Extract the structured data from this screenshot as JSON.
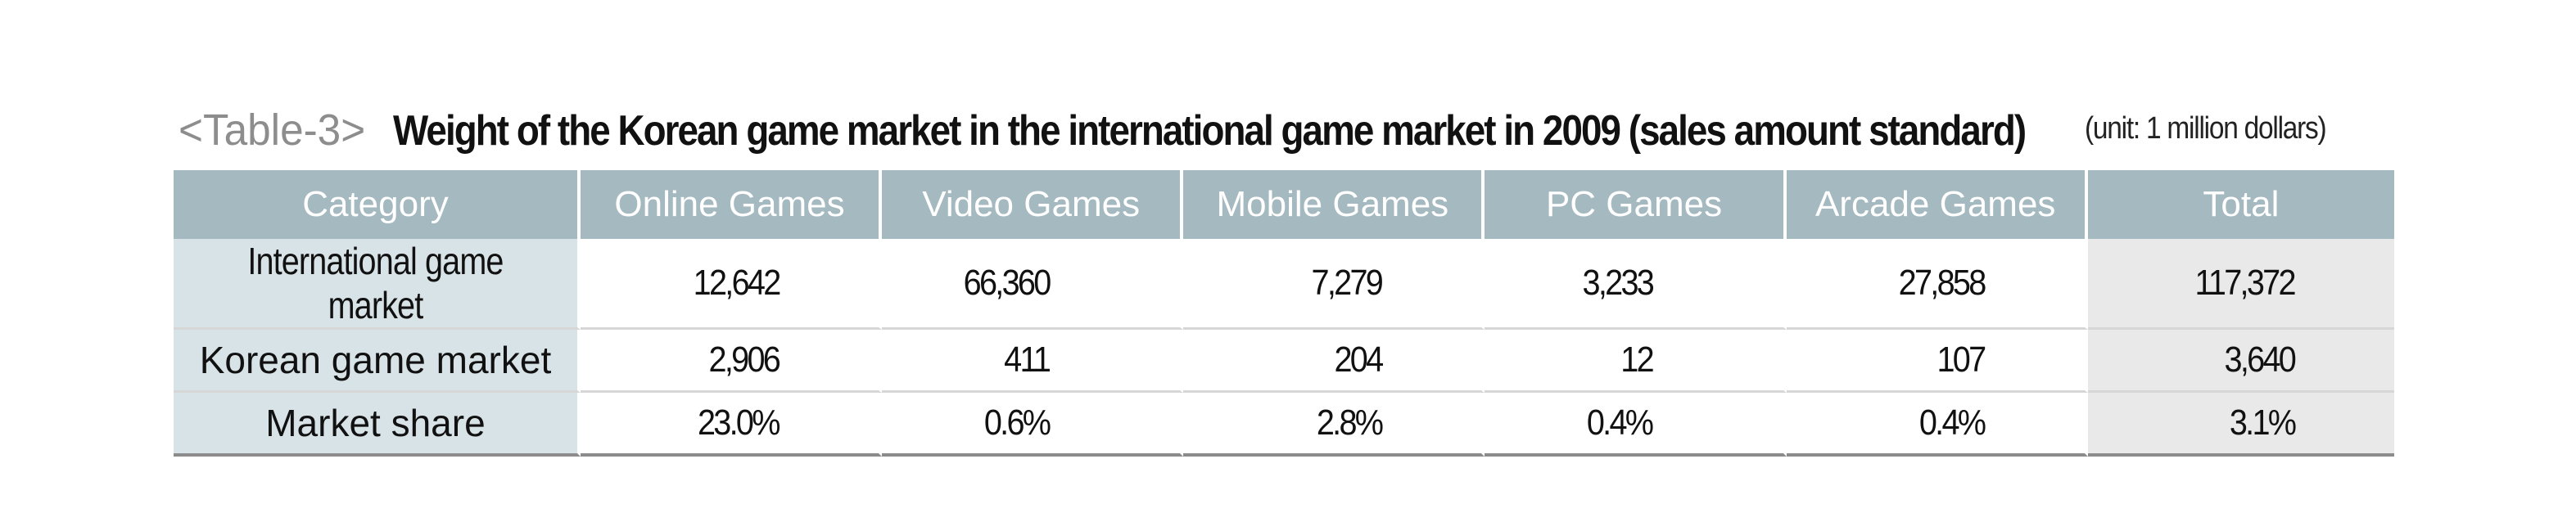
{
  "caption": {
    "label": "<Table-3>",
    "title": "Weight of the Korean game market in the international game market in 2009 (sales amount standard)",
    "unit": "(unit: 1 million dollars)"
  },
  "table": {
    "headers": [
      "Category",
      "Online Games",
      "Video Games",
      "Mobile Games",
      "PC Games",
      "Arcade Games",
      "Total"
    ],
    "rows": [
      {
        "category": "International game market",
        "values": [
          "12,642",
          "66,360",
          "7,279",
          "3,233",
          "27,858",
          "117,372"
        ]
      },
      {
        "category": "Korean game market",
        "values": [
          "2,906",
          "411",
          "204",
          "12",
          "107",
          "3,640"
        ]
      },
      {
        "category": "Market share",
        "values": [
          "23.0%",
          "0.6%",
          "2.8%",
          "0.4%",
          "0.4%",
          "3.1%"
        ]
      }
    ]
  },
  "colors": {
    "header_bg": "#a5b9c0",
    "row_header_bg": "#d8e3e7",
    "total_col_bg": "#e9e9e9"
  }
}
